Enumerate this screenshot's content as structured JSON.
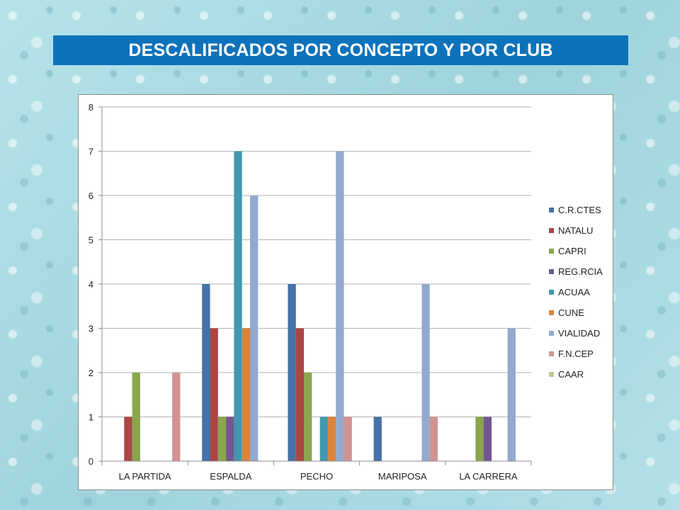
{
  "header": {
    "title": "DESCALIFICADOS POR CONCEPTO Y POR CLUB"
  },
  "chart_data": {
    "type": "bar",
    "title": "",
    "xlabel": "",
    "ylabel": "",
    "ylim": [
      0,
      8
    ],
    "yticks": [
      0,
      1,
      2,
      3,
      4,
      5,
      6,
      7,
      8
    ],
    "grid": true,
    "legend_position": "right",
    "categories": [
      "LA PARTIDA",
      "ESPALDA",
      "PECHO",
      "MARIPOSA",
      "LA CARRERA"
    ],
    "series": [
      {
        "name": "C.R.CTES",
        "color": "#4572a7",
        "values": [
          0,
          4,
          4,
          1,
          0
        ]
      },
      {
        "name": "NATALU",
        "color": "#aa4643",
        "values": [
          1,
          3,
          3,
          0,
          0
        ]
      },
      {
        "name": "CAPRI",
        "color": "#89a54e",
        "values": [
          2,
          1,
          2,
          0,
          1
        ]
      },
      {
        "name": "REG.RCIA",
        "color": "#71588f",
        "values": [
          0,
          1,
          0,
          0,
          1
        ]
      },
      {
        "name": "ACUAA",
        "color": "#4198af",
        "values": [
          0,
          7,
          1,
          0,
          0
        ]
      },
      {
        "name": "CUNE",
        "color": "#db843d",
        "values": [
          0,
          3,
          1,
          0,
          0
        ]
      },
      {
        "name": "VIALIDAD",
        "color": "#93a9cf",
        "values": [
          0,
          6,
          7,
          4,
          3
        ]
      },
      {
        "name": "F.N.CEP",
        "color": "#d19392",
        "values": [
          2,
          0,
          1,
          1,
          0
        ]
      },
      {
        "name": "CAAR",
        "color": "#b9cd96",
        "values": [
          0,
          0,
          0,
          0,
          0
        ]
      }
    ]
  }
}
